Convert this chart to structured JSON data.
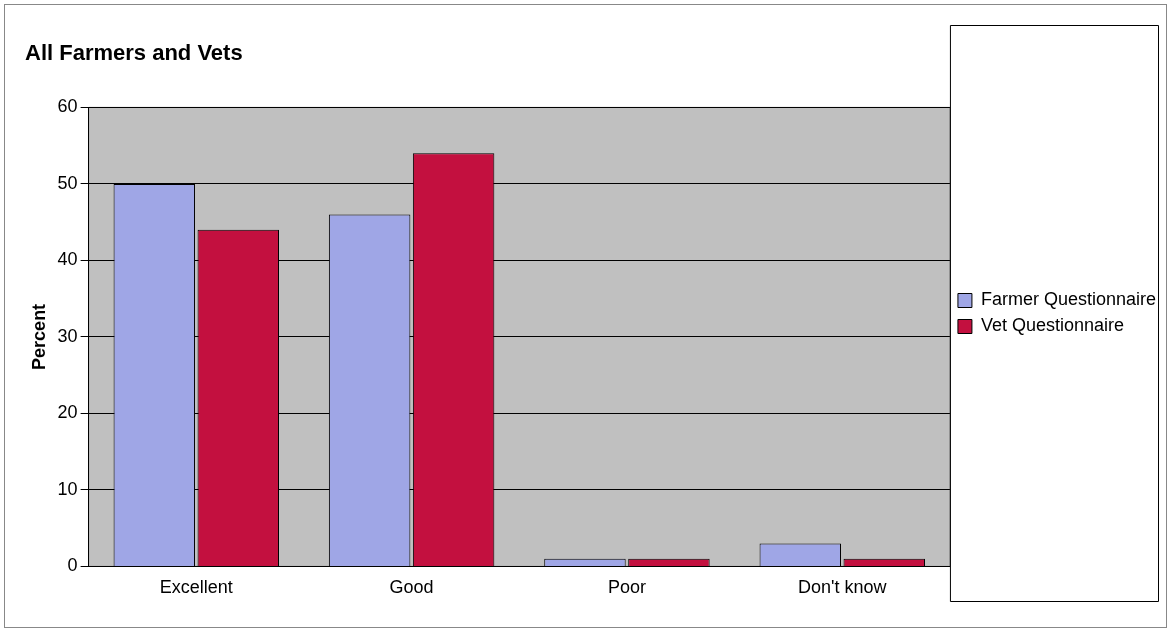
{
  "chart_data": {
    "type": "bar",
    "title": "All Farmers and Vets",
    "ylabel": "Percent",
    "categories": [
      "Excellent",
      "Good",
      "Poor",
      "Don't know"
    ],
    "series": [
      {
        "name": "Farmer Questionnaire",
        "color": "#9fa6e6",
        "values": [
          50,
          46,
          1,
          3
        ]
      },
      {
        "name": "Vet Questionnaire",
        "color": "#c3103f",
        "values": [
          44,
          54,
          1,
          1
        ]
      }
    ],
    "ylim": [
      0,
      60
    ],
    "yticks": [
      0,
      10,
      20,
      30,
      40,
      50,
      60
    ],
    "grid": "y",
    "legend": "right"
  }
}
